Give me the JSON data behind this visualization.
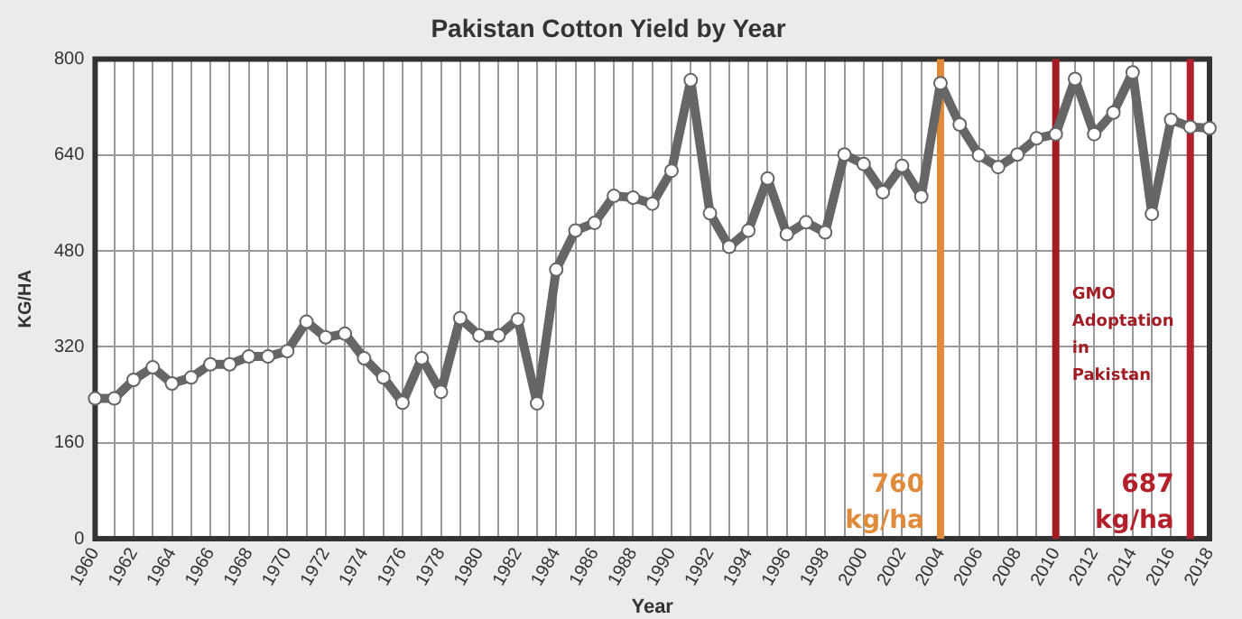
{
  "chart_data": {
    "type": "line",
    "title": "Pakistan Cotton Yield by Year",
    "xlabel": "Year",
    "ylabel": "KG/HA",
    "x": [
      1960,
      1961,
      1962,
      1963,
      1964,
      1965,
      1966,
      1967,
      1968,
      1969,
      1970,
      1971,
      1972,
      1973,
      1974,
      1975,
      1976,
      1977,
      1978,
      1979,
      1980,
      1981,
      1982,
      1983,
      1984,
      1985,
      1986,
      1987,
      1988,
      1989,
      1990,
      1991,
      1992,
      1993,
      1994,
      1995,
      1996,
      1997,
      1998,
      1999,
      2000,
      2001,
      2002,
      2003,
      2004,
      2005,
      2006,
      2007,
      2008,
      2009,
      2010,
      2011,
      2012,
      2013,
      2014,
      2015,
      2016,
      2017,
      2018
    ],
    "series": [
      {
        "color": "#666666",
        "values": [
          234,
          234,
          265,
          286,
          259,
          269,
          291,
          291,
          304,
          304,
          313,
          362,
          336,
          342,
          301,
          269,
          227,
          301,
          245,
          368,
          339,
          339,
          366,
          226,
          449,
          514,
          527,
          572,
          569,
          559,
          614,
          765,
          543,
          487,
          514,
          601,
          508,
          528,
          511,
          641,
          625,
          578,
          622,
          571,
          760,
          691,
          640,
          620,
          641,
          668,
          675,
          767,
          675,
          711,
          778,
          542,
          699,
          687,
          685
        ]
      }
    ],
    "xlim": [
      1960,
      2018
    ],
    "xticks": [
      1960,
      {
        "value": 1961,
        "label": null
      },
      1962,
      {
        "value": 1963,
        "label": null
      },
      1964,
      {
        "value": 1965,
        "label": null
      },
      1966,
      {
        "value": 1967,
        "label": null
      },
      1968,
      {
        "value": 1969,
        "label": null
      },
      1970,
      {
        "value": 1971,
        "label": null
      },
      1972,
      {
        "value": 1973,
        "label": null
      },
      1974,
      {
        "value": 1975,
        "label": null
      },
      1976,
      {
        "value": 1977,
        "label": null
      },
      1978,
      {
        "value": 1979,
        "label": null
      },
      1980,
      {
        "value": 1981,
        "label": null
      },
      1982,
      {
        "value": 1983,
        "label": null
      },
      1984,
      {
        "value": 1985,
        "label": null
      },
      1986,
      {
        "value": 1987,
        "label": null
      },
      1988,
      {
        "value": 1989,
        "label": null
      },
      1990,
      {
        "value": 1991,
        "label": null
      },
      1992,
      {
        "value": 1993,
        "label": null
      },
      1994,
      {
        "value": 1995,
        "label": null
      },
      1996,
      {
        "value": 1997,
        "label": null
      },
      1998,
      {
        "value": 1999,
        "label": null
      },
      2000,
      {
        "value": 2001,
        "label": null
      },
      2002,
      {
        "value": 2003,
        "label": null
      },
      2004,
      {
        "value": 2005,
        "label": null
      },
      2006,
      {
        "value": 2007,
        "label": null
      },
      2008,
      {
        "value": 2009,
        "label": null
      },
      2010,
      {
        "value": 2011,
        "label": null
      },
      2012,
      {
        "value": 2013,
        "label": null
      },
      2014,
      {
        "value": 2015,
        "label": null
      },
      2016,
      {
        "value": 2017,
        "label": null
      },
      2018
    ],
    "ylim": [
      0,
      800
    ],
    "yticks": [
      0,
      160,
      320,
      480,
      640,
      800
    ],
    "grid": true,
    "marker": "circle",
    "line_style": "solid",
    "legend": false,
    "ref_lines": [
      {
        "axis": "x",
        "value": 2004,
        "label": "760 kg/ha",
        "color": "#e08a3c"
      },
      {
        "axis": "x",
        "value": 2010,
        "label": "GMO Adoptation in Pakistan",
        "color": "#a31c24"
      },
      {
        "axis": "x",
        "value": 2017,
        "label": "687 kg/ha",
        "color": "#b3202b"
      }
    ]
  }
}
